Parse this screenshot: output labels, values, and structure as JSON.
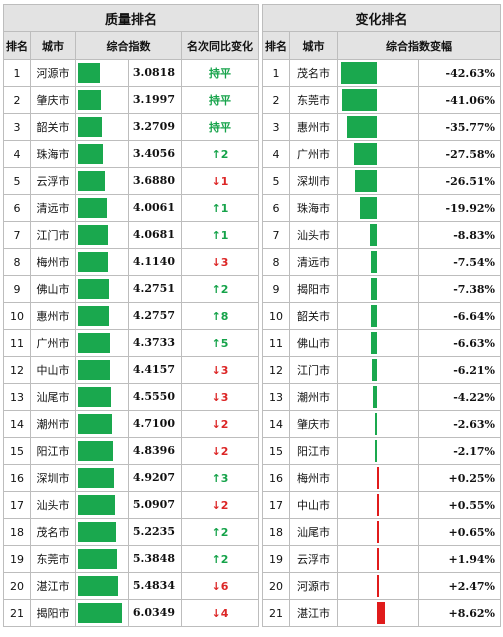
{
  "left_table": {
    "title": "质量排名",
    "headers": [
      "排名",
      "城市",
      "综合指数",
      "名次同比变化"
    ],
    "max_index": 6.0349,
    "rows": [
      {
        "rank": "1",
        "city": "河源市",
        "index": "3.0818",
        "change": "持平",
        "dir": "flat"
      },
      {
        "rank": "2",
        "city": "肇庆市",
        "index": "3.1997",
        "change": "持平",
        "dir": "flat"
      },
      {
        "rank": "3",
        "city": "韶关市",
        "index": "3.2709",
        "change": "持平",
        "dir": "flat"
      },
      {
        "rank": "4",
        "city": "珠海市",
        "index": "3.4056",
        "change": "↑2",
        "dir": "up"
      },
      {
        "rank": "5",
        "city": "云浮市",
        "index": "3.6880",
        "change": "↓1",
        "dir": "down"
      },
      {
        "rank": "6",
        "city": "清远市",
        "index": "4.0061",
        "change": "↑1",
        "dir": "up"
      },
      {
        "rank": "7",
        "city": "江门市",
        "index": "4.0681",
        "change": "↑1",
        "dir": "up"
      },
      {
        "rank": "8",
        "city": "梅州市",
        "index": "4.1140",
        "change": "↓3",
        "dir": "down"
      },
      {
        "rank": "9",
        "city": "佛山市",
        "index": "4.2751",
        "change": "↑2",
        "dir": "up"
      },
      {
        "rank": "10",
        "city": "惠州市",
        "index": "4.2757",
        "change": "↑8",
        "dir": "up"
      },
      {
        "rank": "11",
        "city": "广州市",
        "index": "4.3733",
        "change": "↑5",
        "dir": "up"
      },
      {
        "rank": "12",
        "city": "中山市",
        "index": "4.4157",
        "change": "↓3",
        "dir": "down"
      },
      {
        "rank": "13",
        "city": "汕尾市",
        "index": "4.5550",
        "change": "↓3",
        "dir": "down"
      },
      {
        "rank": "14",
        "city": "潮州市",
        "index": "4.7100",
        "change": "↓2",
        "dir": "down"
      },
      {
        "rank": "15",
        "city": "阳江市",
        "index": "4.8396",
        "change": "↓2",
        "dir": "down"
      },
      {
        "rank": "16",
        "city": "深圳市",
        "index": "4.9207",
        "change": "↑3",
        "dir": "up"
      },
      {
        "rank": "17",
        "city": "汕头市",
        "index": "5.0907",
        "change": "↓2",
        "dir": "down"
      },
      {
        "rank": "18",
        "city": "茂名市",
        "index": "5.2235",
        "change": "↑2",
        "dir": "up"
      },
      {
        "rank": "19",
        "city": "东莞市",
        "index": "5.3848",
        "change": "↑2",
        "dir": "up"
      },
      {
        "rank": "20",
        "city": "湛江市",
        "index": "5.4834",
        "change": "↓6",
        "dir": "down"
      },
      {
        "rank": "21",
        "city": "揭阳市",
        "index": "6.0349",
        "change": "↓4",
        "dir": "down"
      }
    ]
  },
  "right_table": {
    "title": "变化排名",
    "headers": [
      "排名",
      "城市",
      "综合指数变幅"
    ],
    "max_abs": 42.63,
    "rows": [
      {
        "rank": "1",
        "city": "茂名市",
        "pct": "-42.63%",
        "value": -42.63
      },
      {
        "rank": "2",
        "city": "东莞市",
        "pct": "-41.06%",
        "value": -41.06
      },
      {
        "rank": "3",
        "city": "惠州市",
        "pct": "-35.77%",
        "value": -35.77
      },
      {
        "rank": "4",
        "city": "广州市",
        "pct": "-27.58%",
        "value": -27.58
      },
      {
        "rank": "5",
        "city": "深圳市",
        "pct": "-26.51%",
        "value": -26.51
      },
      {
        "rank": "6",
        "city": "珠海市",
        "pct": "-19.92%",
        "value": -19.92
      },
      {
        "rank": "7",
        "city": "汕头市",
        "pct": "-8.83%",
        "value": -8.83
      },
      {
        "rank": "8",
        "city": "清远市",
        "pct": "-7.54%",
        "value": -7.54
      },
      {
        "rank": "9",
        "city": "揭阳市",
        "pct": "-7.38%",
        "value": -7.38
      },
      {
        "rank": "10",
        "city": "韶关市",
        "pct": "-6.64%",
        "value": -6.64
      },
      {
        "rank": "11",
        "city": "佛山市",
        "pct": "-6.63%",
        "value": -6.63
      },
      {
        "rank": "12",
        "city": "江门市",
        "pct": "-6.21%",
        "value": -6.21
      },
      {
        "rank": "13",
        "city": "潮州市",
        "pct": "-4.22%",
        "value": -4.22
      },
      {
        "rank": "14",
        "city": "肇庆市",
        "pct": "-2.63%",
        "value": -2.63
      },
      {
        "rank": "15",
        "city": "阳江市",
        "pct": "-2.17%",
        "value": -2.17
      },
      {
        "rank": "16",
        "city": "梅州市",
        "pct": "+0.25%",
        "value": 0.25
      },
      {
        "rank": "17",
        "city": "中山市",
        "pct": "+0.55%",
        "value": 0.55
      },
      {
        "rank": "18",
        "city": "汕尾市",
        "pct": "+0.65%",
        "value": 0.65
      },
      {
        "rank": "19",
        "city": "云浮市",
        "pct": "+1.94%",
        "value": 1.94
      },
      {
        "rank": "20",
        "city": "河源市",
        "pct": "+2.47%",
        "value": 2.47
      },
      {
        "rank": "21",
        "city": "湛江市",
        "pct": "+8.62%",
        "value": 8.62
      }
    ]
  },
  "colors": {
    "bar_green": "#1aa84e",
    "bar_red": "#e01b1b",
    "up": "#16a34a",
    "down": "#dc2626",
    "header_bg": "#e3e3e3"
  }
}
